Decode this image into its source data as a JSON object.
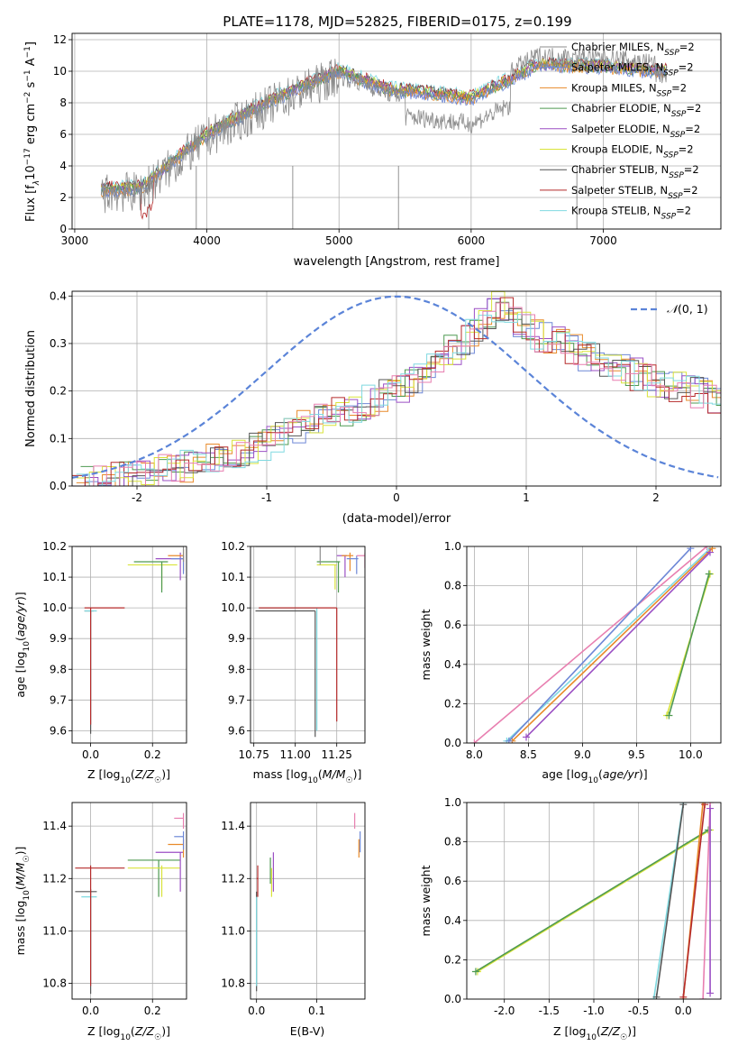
{
  "figure": {
    "title": "PLATE=1178, MJD=52825, FIBERID=0175, z=0.199"
  },
  "colors": {
    "Chabrier MILES": "#8c8c8c",
    "Salpeter MILES": "#6d87d6",
    "Kroupa MILES": "#e88a2a",
    "Chabrier ELODIE": "#4f9a52",
    "Salpeter ELODIE": "#9b4fc4",
    "Kroupa ELODIE": "#d9e33a",
    "Chabrier STELIB": "#555555",
    "Salpeter STELIB": "#b52a2a",
    "Kroupa STELIB": "#7fd9e0",
    "pink": "#e87fb0",
    "normal": "#5b84d8"
  },
  "chart_data": [
    {
      "type": "line",
      "title": "PLATE=1178, MJD=52825, FIBERID=0175, z=0.199",
      "xlabel": "wavelength [Angstrom, rest frame]",
      "ylabel": "Flux [fλ10^-17 erg cm^-2 s^-1 A^-1]",
      "xlim": [
        2980,
        7890
      ],
      "ylim": [
        0,
        12.4
      ],
      "xticks": [
        3000,
        4000,
        5000,
        6000,
        7000
      ],
      "yticks": [
        0,
        2,
        4,
        6,
        8,
        10,
        12
      ],
      "grid": true,
      "legend_position": "top-right",
      "legend": [
        "Chabrier MILES, NSSP=2",
        "Salpeter MILES, NSSP=2",
        "Kroupa MILES, NSSP=2",
        "Chabrier ELODIE, NSSP=2",
        "Salpeter ELODIE, NSSP=2",
        "Kroupa ELODIE, NSSP=2",
        "Chabrier STELIB, NSSP=2",
        "Salpeter STELIB, NSSP=2",
        "Kroupa STELIB, NSSP=2"
      ],
      "data_anchor": {
        "x": [
          3200,
          3500,
          4000,
          4500,
          5000,
          5400,
          5600,
          6000,
          6300,
          6500,
          7000,
          7400
        ],
        "y": [
          2.5,
          2.6,
          6.0,
          8.2,
          10.0,
          8.8,
          8.7,
          8.3,
          9.5,
          10.4,
          10.3,
          10.0
        ]
      }
    },
    {
      "type": "bar",
      "xlabel": "(data-model)/error",
      "ylabel": "Normed distribution",
      "xlim": [
        -2.5,
        2.5
      ],
      "ylim": [
        0,
        0.41
      ],
      "xticks": [
        -2,
        -1,
        0,
        1,
        2
      ],
      "yticks": [
        0.0,
        0.1,
        0.2,
        0.3,
        0.4
      ],
      "grid": true,
      "legend_position": "top-right",
      "legend": [
        "N(0,1)"
      ],
      "histogram_envelope": {
        "x": [
          -2.5,
          -2.0,
          -1.5,
          -1.0,
          -0.5,
          0.0,
          0.5,
          0.8,
          1.0,
          1.5,
          2.0,
          2.5
        ],
        "y": [
          0.01,
          0.02,
          0.05,
          0.09,
          0.15,
          0.2,
          0.3,
          0.38,
          0.33,
          0.27,
          0.22,
          0.18
        ]
      }
    },
    {
      "type": "scatter",
      "xlabel": "Z [log10(Z/Z☉)]",
      "ylabel": "age  [log10(age/yr)]",
      "xlim": [
        -0.06,
        0.31
      ],
      "ylim": [
        9.56,
        10.2
      ],
      "xticks": [
        0.0,
        0.2
      ],
      "yticks": [
        9.6,
        9.7,
        9.8,
        9.9,
        10.0,
        10.1,
        10.2
      ],
      "grid": true
    },
    {
      "type": "scatter",
      "xlabel": "mass [log10(M/M☉)]",
      "ylabel": "",
      "xlim": [
        10.73,
        11.42
      ],
      "ylim": [
        9.56,
        10.2
      ],
      "xticks": [
        10.75,
        11.0,
        11.25
      ],
      "yticks": [
        9.6,
        9.7,
        9.8,
        9.9,
        10.0,
        10.1,
        10.2
      ],
      "grid": true
    },
    {
      "type": "line",
      "xlabel": "age  [log10(age/yr)]",
      "ylabel": "mass weight",
      "xlim": [
        7.93,
        10.28
      ],
      "ylim": [
        0,
        1.0
      ],
      "xticks": [
        8.0,
        8.5,
        9.0,
        9.5,
        10.0
      ],
      "yticks": [
        0.0,
        0.2,
        0.4,
        0.6,
        0.8,
        1.0
      ],
      "grid": true,
      "series": [
        {
          "x": [
            8.0,
            10.15
          ],
          "y": [
            0.0,
            1.0
          ]
        },
        {
          "x": [
            8.3,
            10.18
          ],
          "y": [
            0.01,
            0.99
          ]
        },
        {
          "x": [
            8.35,
            10.2
          ],
          "y": [
            0.01,
            0.99
          ]
        },
        {
          "x": [
            8.32,
            10.0
          ],
          "y": [
            0.01,
            0.99
          ]
        },
        {
          "x": [
            8.48,
            10.18
          ],
          "y": [
            0.03,
            0.97
          ]
        },
        {
          "x": [
            9.78,
            10.18
          ],
          "y": [
            0.14,
            0.86
          ]
        },
        {
          "x": [
            9.8,
            10.17
          ],
          "y": [
            0.14,
            0.86
          ]
        }
      ]
    },
    {
      "type": "scatter",
      "xlabel": "Z [log10(Z/Z☉)]",
      "ylabel": "mass [log10(M/M☉)]",
      "xlim": [
        -0.06,
        0.31
      ],
      "ylim": [
        10.74,
        11.49
      ],
      "xticks": [
        0.0,
        0.2
      ],
      "yticks": [
        10.8,
        11.0,
        11.2,
        11.4
      ],
      "grid": true
    },
    {
      "type": "scatter",
      "xlabel": "E(B-V)",
      "ylabel": "",
      "xlim": [
        -0.01,
        0.18
      ],
      "ylim": [
        10.74,
        11.49
      ],
      "xticks": [
        0.0,
        0.1
      ],
      "yticks": [
        10.8,
        11.0,
        11.2,
        11.4
      ],
      "grid": true
    },
    {
      "type": "line",
      "xlabel": "Z [log10(Z/Z☉)]",
      "ylabel": "mass weight",
      "xlim": [
        -2.42,
        0.42
      ],
      "ylim": [
        0,
        1.0
      ],
      "xticks": [
        -2.0,
        -1.5,
        -1.0,
        -0.5,
        0.0
      ],
      "yticks": [
        0.0,
        0.2,
        0.4,
        0.6,
        0.8,
        1.0
      ],
      "grid": true,
      "series": [
        {
          "x": [
            -2.3,
            0.3
          ],
          "y": [
            0.14,
            0.86
          ]
        },
        {
          "x": [
            -2.32,
            0.28
          ],
          "y": [
            0.14,
            0.86
          ]
        },
        {
          "x": [
            -0.33,
            0.0
          ],
          "y": [
            0.0,
            1.0
          ]
        },
        {
          "x": [
            -0.3,
            0.0
          ],
          "y": [
            0.01,
            0.99
          ]
        },
        {
          "x": [
            0.0,
            0.22
          ],
          "y": [
            0.0,
            1.0
          ]
        },
        {
          "x": [
            0.0,
            0.24
          ],
          "y": [
            0.01,
            0.99
          ]
        },
        {
          "x": [
            0.22,
            0.3
          ],
          "y": [
            0.0,
            1.0
          ]
        },
        {
          "x": [
            0.3,
            0.3
          ],
          "y": [
            0.03,
            0.97
          ]
        }
      ]
    }
  ]
}
